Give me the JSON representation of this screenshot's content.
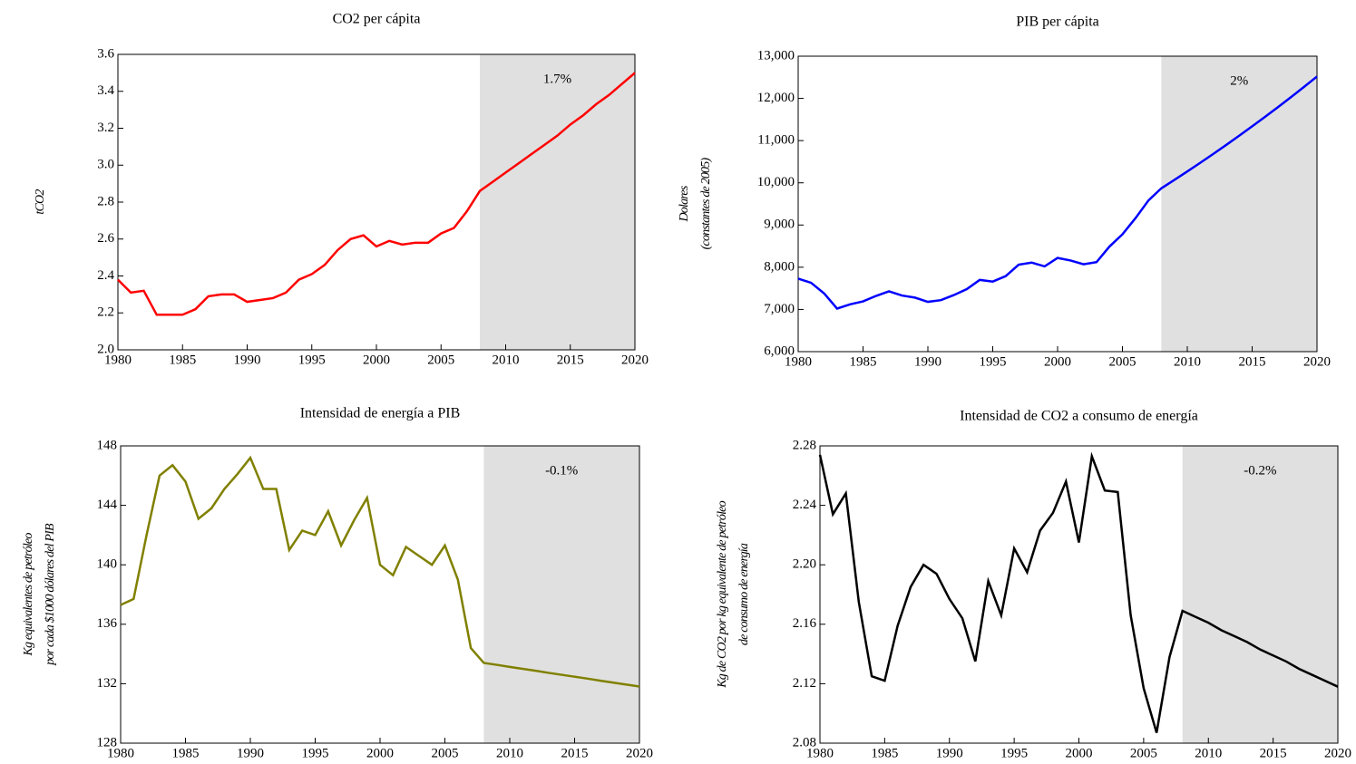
{
  "chart_data": [
    {
      "type": "line",
      "title": "CO2 per cápita",
      "ylabel": [
        "tCO2"
      ],
      "annotation": "1.7%",
      "shade": [
        2008,
        2020
      ],
      "x": [
        1980,
        1981,
        1982,
        1983,
        1984,
        1985,
        1986,
        1987,
        1988,
        1989,
        1990,
        1991,
        1992,
        1993,
        1994,
        1995,
        1996,
        1997,
        1998,
        1999,
        2000,
        2001,
        2002,
        2003,
        2004,
        2005,
        2006,
        2007,
        2008,
        2009,
        2010,
        2011,
        2012,
        2013,
        2014,
        2015,
        2016,
        2017,
        2018,
        2019,
        2020
      ],
      "series": [
        {
          "color": "#ff0000",
          "values": [
            2.38,
            2.31,
            2.32,
            2.19,
            2.19,
            2.19,
            2.22,
            2.29,
            2.3,
            2.3,
            2.26,
            2.27,
            2.28,
            2.31,
            2.38,
            2.41,
            2.46,
            2.54,
            2.6,
            2.62,
            2.56,
            2.59,
            2.57,
            2.58,
            2.58,
            2.63,
            2.66,
            2.75,
            2.86,
            2.91,
            2.96,
            3.01,
            3.06,
            3.11,
            3.16,
            3.22,
            3.27,
            3.33,
            3.38,
            3.44,
            3.5
          ]
        }
      ],
      "xlim": [
        1980,
        2020
      ],
      "xticks": [
        1980,
        1985,
        1990,
        1995,
        2000,
        2005,
        2010,
        2015,
        2020
      ],
      "ylim": [
        2.0,
        3.6
      ],
      "yticks": [
        {
          "value": 2.0,
          "label": "2.0"
        },
        2.2,
        2.4,
        2.6,
        2.8,
        {
          "value": 3.0,
          "label": "3.0"
        },
        3.2,
        3.4,
        3.6
      ]
    },
    {
      "type": "line",
      "title": "PIB per cápita",
      "ylabel": [
        "Dolares",
        "(constantes de 2005)"
      ],
      "annotation": "2%",
      "shade": [
        2008,
        2020
      ],
      "x": [
        1980,
        1981,
        1982,
        1983,
        1984,
        1985,
        1986,
        1987,
        1988,
        1989,
        1990,
        1991,
        1992,
        1993,
        1994,
        1995,
        1996,
        1997,
        1998,
        1999,
        2000,
        2001,
        2002,
        2003,
        2004,
        2005,
        2006,
        2007,
        2008,
        2009,
        2010,
        2011,
        2012,
        2013,
        2014,
        2015,
        2016,
        2017,
        2018,
        2019,
        2020
      ],
      "series": [
        {
          "color": "#0000ff",
          "values": [
            7730,
            7630,
            7380,
            7020,
            7120,
            7190,
            7320,
            7430,
            7330,
            7280,
            7180,
            7220,
            7340,
            7480,
            7700,
            7660,
            7790,
            8060,
            8110,
            8020,
            8220,
            8160,
            8070,
            8120,
            8490,
            8780,
            9160,
            9580,
            9870,
            10067,
            10269,
            10474,
            10684,
            10897,
            11115,
            11338,
            11564,
            11796,
            12032,
            12272,
            12518
          ]
        }
      ],
      "xlim": [
        1980,
        2020
      ],
      "xticks": [
        1980,
        1985,
        1990,
        1995,
        2000,
        2005,
        2010,
        2015,
        2020
      ],
      "ylim": [
        6000,
        13000
      ],
      "yticks": [
        {
          "value": 6000,
          "label": "6,000"
        },
        {
          "value": 7000,
          "label": "7,000"
        },
        {
          "value": 8000,
          "label": "8,000"
        },
        {
          "value": 9000,
          "label": "9,000"
        },
        {
          "value": 10000,
          "label": "10,000"
        },
        {
          "value": 11000,
          "label": "11,000"
        },
        {
          "value": 12000,
          "label": "12,000"
        },
        {
          "value": 13000,
          "label": "13,000"
        }
      ]
    },
    {
      "type": "line",
      "title": "Intensidad de energía a PIB",
      "ylabel": [
        "Kg equivalentes de petróleo",
        "por cada $1000 dólares del PIB"
      ],
      "annotation": "-0.1%",
      "shade": [
        2008,
        2020
      ],
      "x": [
        1980,
        1981,
        1982,
        1983,
        1984,
        1985,
        1986,
        1987,
        1988,
        1989,
        1990,
        1991,
        1992,
        1993,
        1994,
        1995,
        1996,
        1997,
        1998,
        1999,
        2000,
        2001,
        2002,
        2003,
        2004,
        2005,
        2006,
        2007,
        2008,
        2009,
        2010,
        2011,
        2012,
        2013,
        2014,
        2015,
        2016,
        2017,
        2018,
        2019,
        2020
      ],
      "series": [
        {
          "color": "#808000",
          "values": [
            137.3,
            137.7,
            142.0,
            146.0,
            146.7,
            145.6,
            143.1,
            143.8,
            145.1,
            146.1,
            147.2,
            145.1,
            145.1,
            141.0,
            142.3,
            142.0,
            143.6,
            141.3,
            143.0,
            144.5,
            140.0,
            139.3,
            141.2,
            140.6,
            140.0,
            141.3,
            139.0,
            134.4,
            133.4,
            133.27,
            133.13,
            133.0,
            132.87,
            132.73,
            132.6,
            132.47,
            132.34,
            132.2,
            132.07,
            131.94,
            131.81
          ]
        }
      ],
      "xlim": [
        1980,
        2020
      ],
      "xticks": [
        1980,
        1985,
        1990,
        1995,
        2000,
        2005,
        2010,
        2015,
        2020
      ],
      "ylim": [
        128,
        148
      ],
      "yticks": [
        128,
        132,
        136,
        140,
        144,
        148
      ]
    },
    {
      "type": "line",
      "title": "Intensidad de CO2 a consumo de energía",
      "ylabel": [
        "Kg de CO2 por kg equivalente de petróleo",
        "de consumo de energía"
      ],
      "annotation": "-0.2%",
      "shade": [
        2008,
        2020
      ],
      "x": [
        1980,
        1981,
        1982,
        1983,
        1984,
        1985,
        1986,
        1987,
        1988,
        1989,
        1990,
        1991,
        1992,
        1993,
        1994,
        1995,
        1996,
        1997,
        1998,
        1999,
        2000,
        2001,
        2002,
        2003,
        2004,
        2005,
        2006,
        2007,
        2008,
        2009,
        2010,
        2011,
        2012,
        2013,
        2014,
        2015,
        2016,
        2017,
        2018,
        2019,
        2020
      ],
      "series": [
        {
          "color": "#000000",
          "values": [
            2.274,
            2.234,
            2.248,
            2.175,
            2.125,
            2.122,
            2.159,
            2.185,
            2.2,
            2.194,
            2.177,
            2.164,
            2.135,
            2.189,
            2.166,
            2.211,
            2.195,
            2.223,
            2.235,
            2.256,
            2.215,
            2.273,
            2.25,
            2.249,
            2.166,
            2.117,
            2.087,
            2.138,
            2.169,
            2.165,
            2.161,
            2.156,
            2.152,
            2.148,
            2.143,
            2.139,
            2.135,
            2.13,
            2.126,
            2.122,
            2.118
          ]
        }
      ],
      "xlim": [
        1980,
        2020
      ],
      "xticks": [
        1980,
        1985,
        1990,
        1995,
        2000,
        2005,
        2010,
        2015,
        2020
      ],
      "ylim": [
        2.08,
        2.28
      ],
      "yticks": [
        2.08,
        2.12,
        2.16,
        {
          "value": 2.2,
          "label": "2.20"
        },
        2.24,
        2.28
      ]
    }
  ]
}
